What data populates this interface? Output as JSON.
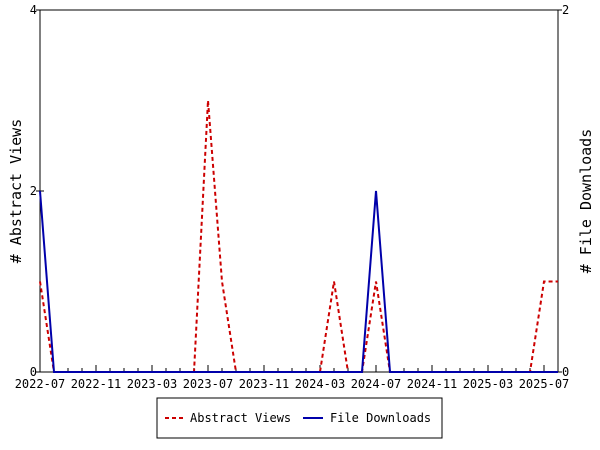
{
  "chart_data": {
    "type": "line",
    "title": "",
    "xlabel": "",
    "ylabel_left": "# Abstract Views",
    "ylabel_right": "# File Downloads",
    "x_ticks": [
      "2022-07",
      "2022-11",
      "2023-03",
      "2023-07",
      "2023-11",
      "2024-03",
      "2024-07",
      "2024-11",
      "2025-03",
      "2025-07"
    ],
    "x_range": [
      "2022-07",
      "2025-08"
    ],
    "y_left_ticks": [
      0,
      2,
      4
    ],
    "y_left_range": [
      0,
      4
    ],
    "y_right_ticks": [
      0,
      2
    ],
    "y_right_range": [
      0,
      2
    ],
    "grid": false,
    "legend_position": "bottom-center",
    "series": [
      {
        "name": "Abstract Views",
        "axis": "left",
        "color": "#cc0000",
        "style": "dashed",
        "x": [
          "2022-07",
          "2022-08",
          "2022-09",
          "2022-10",
          "2022-11",
          "2022-12",
          "2023-01",
          "2023-02",
          "2023-03",
          "2023-04",
          "2023-05",
          "2023-06",
          "2023-07",
          "2023-08",
          "2023-09",
          "2023-10",
          "2023-11",
          "2023-12",
          "2024-01",
          "2024-02",
          "2024-03",
          "2024-04",
          "2024-05",
          "2024-06",
          "2024-07",
          "2024-08",
          "2024-09",
          "2024-10",
          "2024-11",
          "2024-12",
          "2025-01",
          "2025-02",
          "2025-03",
          "2025-04",
          "2025-05",
          "2025-06",
          "2025-07",
          "2025-08"
        ],
        "values": [
          1,
          0,
          0,
          0,
          0,
          0,
          0,
          0,
          0,
          0,
          0,
          0,
          3,
          1,
          0,
          0,
          0,
          0,
          0,
          0,
          0,
          1,
          0,
          0,
          1,
          0,
          0,
          0,
          0,
          0,
          0,
          0,
          0,
          0,
          0,
          0,
          1,
          1
        ]
      },
      {
        "name": "File Downloads",
        "axis": "right",
        "color": "#0000aa",
        "style": "solid",
        "x": [
          "2022-07",
          "2022-08",
          "2022-09",
          "2022-10",
          "2022-11",
          "2022-12",
          "2023-01",
          "2023-02",
          "2023-03",
          "2023-04",
          "2023-05",
          "2023-06",
          "2023-07",
          "2023-08",
          "2023-09",
          "2023-10",
          "2023-11",
          "2023-12",
          "2024-01",
          "2024-02",
          "2024-03",
          "2024-04",
          "2024-05",
          "2024-06",
          "2024-07",
          "2024-08",
          "2024-09",
          "2024-10",
          "2024-11",
          "2024-12",
          "2025-01",
          "2025-02",
          "2025-03",
          "2025-04",
          "2025-05",
          "2025-06",
          "2025-07",
          "2025-08"
        ],
        "values": [
          1,
          0,
          0,
          0,
          0,
          0,
          0,
          0,
          0,
          0,
          0,
          0,
          0,
          0,
          0,
          0,
          0,
          0,
          0,
          0,
          0,
          0,
          0,
          0,
          1,
          0,
          0,
          0,
          0,
          0,
          0,
          0,
          0,
          0,
          0,
          0,
          0,
          0
        ]
      }
    ]
  }
}
